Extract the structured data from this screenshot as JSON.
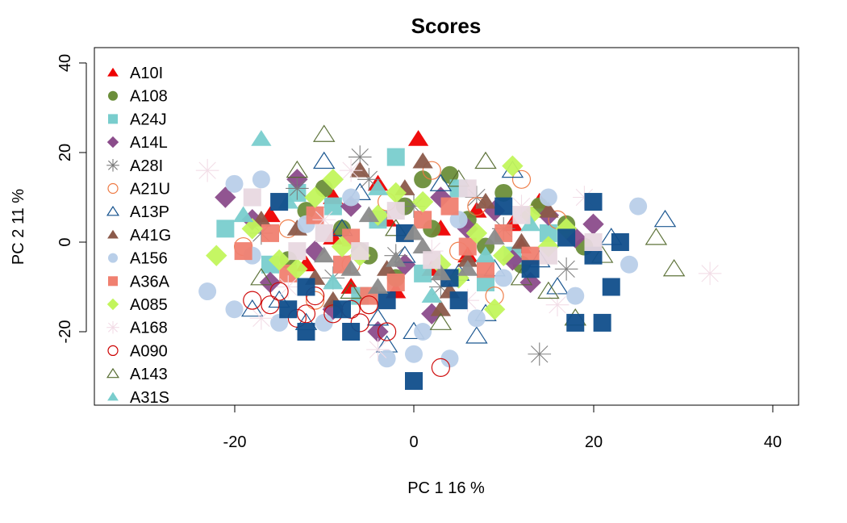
{
  "chart_data": {
    "type": "scatter",
    "title": "Scores",
    "xlabel": "PC 1 16 %",
    "ylabel": "PC 2 11 %",
    "xlim": [
      -35,
      42
    ],
    "ylim": [
      -37,
      41
    ],
    "xticks": [
      "-20",
      "0",
      "20",
      "40"
    ],
    "yticks": [
      "-20",
      "0",
      "20",
      "40"
    ],
    "legend_position": "top-left",
    "grid": false,
    "series": [
      {
        "name": "A10I",
        "color": "#ee0000",
        "shape": "triangle-filled",
        "points": [
          [
            0.5,
            23
          ],
          [
            -12,
            -5
          ],
          [
            -9,
            10
          ],
          [
            3,
            3
          ],
          [
            -7,
            -10
          ],
          [
            14,
            9
          ],
          [
            -3,
            5
          ],
          [
            6,
            -3
          ],
          [
            -16,
            6
          ],
          [
            12,
            -1
          ],
          [
            -4,
            13
          ],
          [
            2,
            -6
          ],
          [
            -9,
            1
          ],
          [
            7,
            7
          ],
          [
            -2,
            -11
          ],
          [
            11,
            4
          ]
        ]
      },
      {
        "name": "A108",
        "color": "#6b8e3a",
        "shape": "circle-filled",
        "points": [
          [
            4,
            15
          ],
          [
            -12,
            7
          ],
          [
            -6,
            -2
          ],
          [
            8,
            -1
          ],
          [
            17,
            4
          ],
          [
            -1,
            8
          ],
          [
            10,
            11
          ],
          [
            -14,
            -4
          ],
          [
            2,
            3
          ],
          [
            -5,
            -3
          ],
          [
            12,
            -5
          ],
          [
            6,
            5
          ],
          [
            -10,
            12
          ],
          [
            14,
            8
          ],
          [
            -2,
            -8
          ],
          [
            -8,
            3
          ],
          [
            19,
            -1
          ],
          [
            1,
            14
          ]
        ]
      },
      {
        "name": "A24J",
        "color": "#79cdcd",
        "shape": "square-filled",
        "points": [
          [
            -2,
            19
          ],
          [
            -21,
            3
          ],
          [
            8,
            -9
          ],
          [
            -4,
            5
          ],
          [
            11,
            -3
          ],
          [
            -16,
            -5
          ],
          [
            5,
            12
          ],
          [
            -9,
            8
          ],
          [
            1,
            -7
          ],
          [
            -13,
            11
          ],
          [
            15,
            2
          ],
          [
            -6,
            -12
          ]
        ]
      },
      {
        "name": "A14L",
        "color": "#8b4c8b",
        "shape": "diamond-filled",
        "points": [
          [
            -21,
            10
          ],
          [
            -13,
            14
          ],
          [
            15,
            6
          ],
          [
            -9,
            -15
          ],
          [
            2,
            -16
          ],
          [
            -16,
            -9
          ],
          [
            6,
            3
          ],
          [
            -4,
            -20
          ],
          [
            11,
            -4
          ],
          [
            -11,
            -2
          ],
          [
            18,
            1
          ],
          [
            -7,
            8
          ],
          [
            3,
            10
          ],
          [
            -1,
            -5
          ],
          [
            9,
            7
          ],
          [
            20,
            4
          ],
          [
            -18,
            5
          ],
          [
            13,
            -9
          ]
        ]
      },
      {
        "name": "A28I",
        "color": "#7a7a7a",
        "shape": "asterisk",
        "points": [
          [
            -6,
            19
          ],
          [
            -13,
            12
          ],
          [
            7,
            10
          ],
          [
            14,
            -25
          ],
          [
            -2,
            -3
          ],
          [
            10,
            3
          ],
          [
            -9,
            -8
          ],
          [
            3,
            -10
          ],
          [
            -17,
            2
          ],
          [
            17,
            -6
          ],
          [
            0,
            8
          ],
          [
            -5,
            14
          ]
        ]
      },
      {
        "name": "A21U",
        "color": "#ee7942",
        "shape": "circle-open",
        "points": [
          [
            12,
            14
          ],
          [
            -7,
            -5
          ],
          [
            5,
            -2
          ],
          [
            -14,
            3
          ],
          [
            9,
            -12
          ],
          [
            -3,
            9
          ],
          [
            16,
            5
          ],
          [
            -11,
            -13
          ],
          [
            2,
            16
          ],
          [
            -19,
            -1
          ],
          [
            7,
            8
          ],
          [
            -5,
            -14
          ]
        ]
      },
      {
        "name": "A13P",
        "color": "#104e8b",
        "shape": "triangle-open",
        "points": [
          [
            -10,
            18
          ],
          [
            -4,
            -17
          ],
          [
            5,
            -7
          ],
          [
            11,
            16
          ],
          [
            -15,
            -13
          ],
          [
            0,
            -20
          ],
          [
            14,
            -4
          ],
          [
            -8,
            3
          ],
          [
            8,
            -16
          ],
          [
            -18,
            -15
          ],
          [
            3,
            13
          ],
          [
            16,
            -10
          ],
          [
            -12,
            -18
          ],
          [
            28,
            5
          ],
          [
            -6,
            11
          ],
          [
            22,
            1
          ],
          [
            -1,
            -3
          ],
          [
            9,
            -6
          ],
          [
            -3,
            -23
          ],
          [
            7,
            -21
          ]
        ]
      },
      {
        "name": "A41G",
        "color": "#8b5a4a",
        "shape": "triangle-filled",
        "points": [
          [
            1,
            18
          ],
          [
            -6,
            16
          ],
          [
            4,
            -11
          ],
          [
            -13,
            3
          ],
          [
            8,
            9
          ],
          [
            -3,
            -6
          ],
          [
            12,
            0
          ],
          [
            -9,
            -13
          ],
          [
            6,
            -4
          ],
          [
            -17,
            5
          ],
          [
            15,
            7
          ],
          [
            -1,
            12
          ],
          [
            3,
            -15
          ],
          [
            -11,
            -8
          ]
        ]
      },
      {
        "name": "A156",
        "color": "#b9cfe9",
        "shape": "circle-filled",
        "points": [
          [
            -20,
            13
          ],
          [
            -17,
            14
          ],
          [
            -23,
            -11
          ],
          [
            -20,
            -15
          ],
          [
            -15,
            -18
          ],
          [
            -10,
            -18
          ],
          [
            25,
            8
          ],
          [
            24,
            -5
          ],
          [
            -3,
            -26
          ],
          [
            1,
            -20
          ],
          [
            4,
            -26
          ],
          [
            7,
            -17
          ],
          [
            15,
            10
          ],
          [
            -18,
            -3
          ],
          [
            -7,
            10
          ],
          [
            10,
            -8
          ],
          [
            18,
            -12
          ],
          [
            0,
            -25
          ],
          [
            5,
            5
          ],
          [
            -12,
            4
          ]
        ]
      },
      {
        "name": "A36A",
        "color": "#f08070",
        "shape": "square-filled",
        "points": [
          [
            -19,
            -2
          ],
          [
            -8,
            -5
          ],
          [
            1,
            5
          ],
          [
            -14,
            -7
          ],
          [
            6,
            -1
          ],
          [
            -5,
            -12
          ],
          [
            10,
            2
          ],
          [
            -11,
            6
          ],
          [
            -2,
            -9
          ],
          [
            13,
            -3
          ],
          [
            -16,
            2
          ],
          [
            4,
            8
          ],
          [
            -7,
            1
          ],
          [
            8,
            -6
          ]
        ]
      },
      {
        "name": "A085",
        "color": "#c2f55c",
        "shape": "diamond-filled",
        "points": [
          [
            -22,
            -3
          ],
          [
            -18,
            3
          ],
          [
            -15,
            -4
          ],
          [
            -11,
            10
          ],
          [
            -6,
            -3
          ],
          [
            -2,
            11
          ],
          [
            3,
            -5
          ],
          [
            7,
            2
          ],
          [
            11,
            17
          ],
          [
            9,
            -15
          ],
          [
            13,
            6
          ],
          [
            -8,
            -1
          ],
          [
            1,
            9
          ],
          [
            5,
            -8
          ],
          [
            15,
            -1
          ],
          [
            -13,
            -6
          ],
          [
            -4,
            6
          ],
          [
            17,
            3
          ],
          [
            -9,
            14
          ],
          [
            10,
            -3
          ]
        ]
      },
      {
        "name": "A168",
        "color": "#f2dce6",
        "shape": "asterisk",
        "points": [
          [
            -23,
            16
          ],
          [
            33,
            -7
          ],
          [
            -17,
            -17
          ],
          [
            -4,
            -24
          ],
          [
            19,
            10
          ],
          [
            -10,
            5
          ],
          [
            6,
            -13
          ],
          [
            12,
            8
          ],
          [
            -14,
            -10
          ],
          [
            2,
            -2
          ],
          [
            -7,
            16
          ],
          [
            16,
            -14
          ]
        ]
      },
      {
        "name": "A090",
        "color": "#cc0000",
        "shape": "circle-open",
        "points": [
          [
            -18,
            -13
          ],
          [
            -15,
            -11
          ],
          [
            -12,
            -16
          ],
          [
            -9,
            -16
          ],
          [
            -6,
            -18
          ],
          [
            -5,
            -14
          ],
          [
            -3,
            -20
          ],
          [
            3,
            -28
          ],
          [
            -16,
            -14
          ],
          [
            -11,
            -12
          ],
          [
            -7,
            -15
          ],
          [
            -13,
            -17
          ]
        ]
      },
      {
        "name": "A143",
        "color": "#556b2f",
        "shape": "triangle-open",
        "points": [
          [
            -10,
            24
          ],
          [
            29,
            -6
          ],
          [
            27,
            1
          ],
          [
            18,
            -17
          ],
          [
            -13,
            16
          ],
          [
            5,
            14
          ],
          [
            -7,
            -11
          ],
          [
            12,
            -8
          ],
          [
            -2,
            3
          ],
          [
            8,
            18
          ],
          [
            15,
            -11
          ],
          [
            -17,
            -8
          ],
          [
            3,
            -18
          ],
          [
            21,
            -3
          ]
        ]
      },
      {
        "name": "A31S",
        "color": "#79cdcd",
        "shape": "triangle-filled",
        "points": [
          [
            -17,
            23
          ],
          [
            -4,
            12
          ],
          [
            8,
            -3
          ],
          [
            -19,
            6
          ],
          [
            2,
            -12
          ],
          [
            13,
            4
          ],
          [
            -9,
            -9
          ],
          [
            -14,
            9
          ]
        ]
      },
      {
        "name": "",
        "color": "#104e8b",
        "shape": "square-filled",
        "show_in_legend": false,
        "points": [
          [
            20,
            9
          ],
          [
            22,
            -10
          ],
          [
            18,
            -18
          ],
          [
            21,
            -18
          ],
          [
            0,
            -31
          ],
          [
            -12,
            -20
          ],
          [
            -14,
            -15
          ],
          [
            -7,
            -20
          ],
          [
            -12,
            -10
          ],
          [
            -8,
            -15
          ],
          [
            -3,
            -13
          ],
          [
            5,
            -13
          ],
          [
            17,
            1
          ],
          [
            23,
            0
          ],
          [
            20,
            -3
          ],
          [
            10,
            8
          ],
          [
            -1,
            2
          ],
          [
            -15,
            9
          ],
          [
            4,
            -8
          ],
          [
            13,
            -6
          ]
        ]
      },
      {
        "name": "",
        "color": "#8b8b8b",
        "shape": "triangle-filled",
        "show_in_legend": false,
        "points": [
          [
            -7,
            -6
          ],
          [
            -2,
            -4
          ],
          [
            -5,
            6
          ],
          [
            3,
            -7
          ],
          [
            0,
            2
          ],
          [
            -10,
            -3
          ],
          [
            6,
            -6
          ],
          [
            -4,
            -10
          ],
          [
            9,
            1
          ],
          [
            1,
            -1
          ]
        ]
      },
      {
        "name": "",
        "color": "#e8d8e0",
        "shape": "square-filled",
        "show_in_legend": false,
        "points": [
          [
            -18,
            10
          ],
          [
            -2,
            7
          ],
          [
            20,
            0
          ],
          [
            -10,
            2
          ],
          [
            6,
            12
          ],
          [
            -6,
            -2
          ],
          [
            12,
            6
          ],
          [
            2,
            -4
          ],
          [
            -13,
            -2
          ],
          [
            15,
            -3
          ]
        ]
      }
    ]
  }
}
